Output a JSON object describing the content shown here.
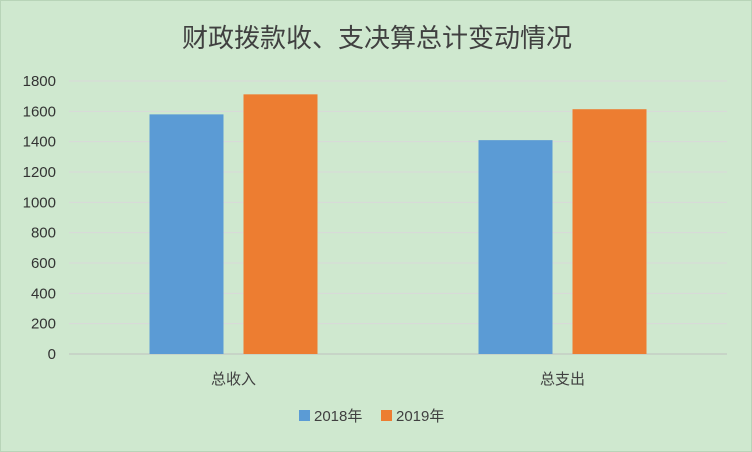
{
  "chart_data": {
    "type": "bar",
    "title": "财政拨款收、支决算总计变动情况",
    "categories": [
      "总收入",
      "总支出"
    ],
    "series": [
      {
        "name": "2018年",
        "color": "#5b9bd5",
        "values": [
          1580,
          1410
        ]
      },
      {
        "name": "2019年",
        "color": "#ed7d31",
        "values": [
          1712,
          1614
        ]
      }
    ],
    "y_ticks": [
      "0",
      "200",
      "400",
      "600",
      "800",
      "1000",
      "1200",
      "1400",
      "1600",
      "1800"
    ],
    "ylim": [
      0,
      1800
    ],
    "grid": true,
    "legend_position": "bottom",
    "xlabel": "",
    "ylabel": ""
  }
}
